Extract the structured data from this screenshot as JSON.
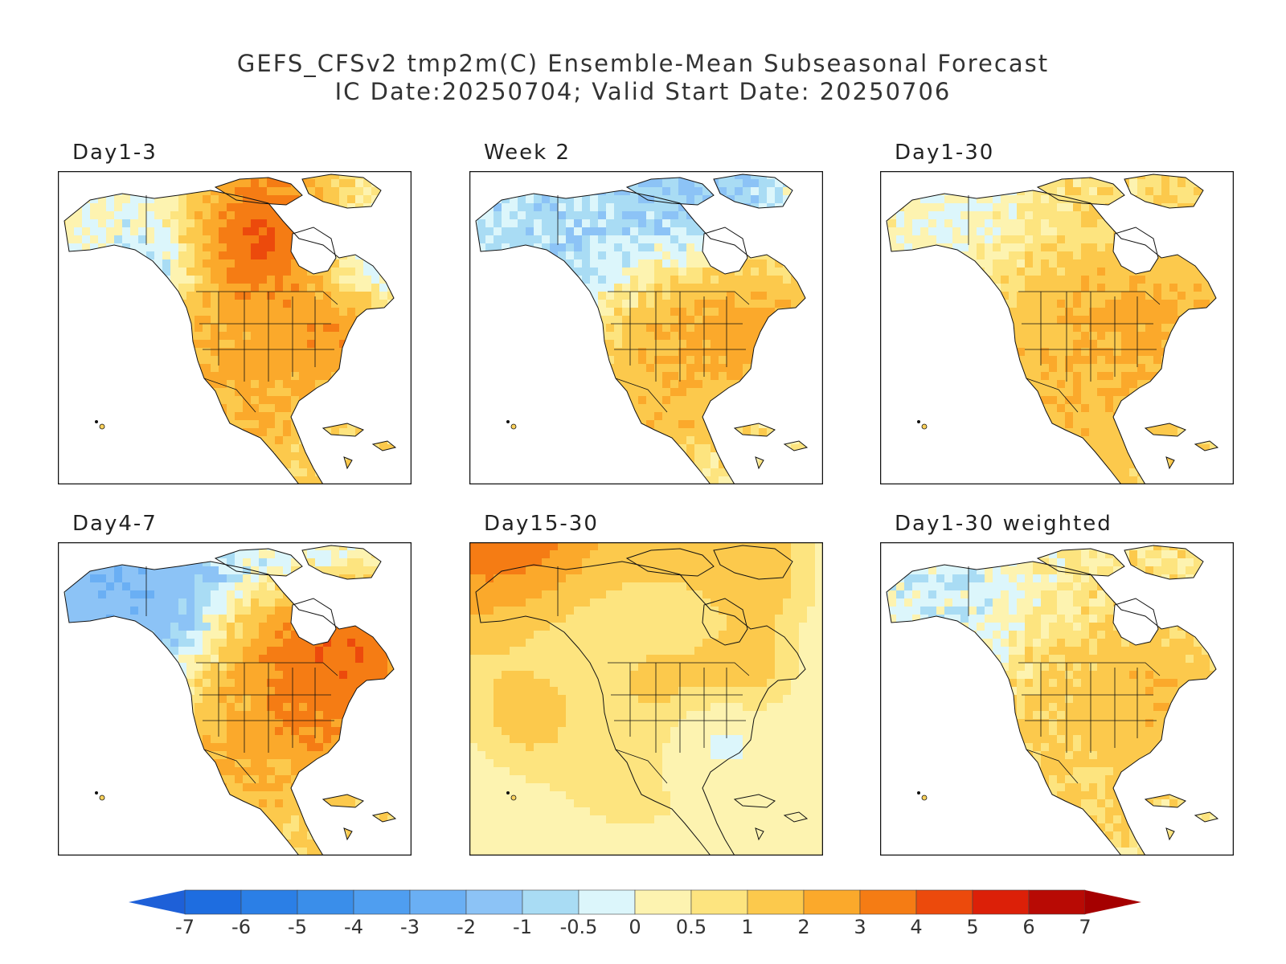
{
  "title": {
    "line1": "GEFS_CFSv2 tmp2m(C) Ensemble-Mean Subseasonal Forecast",
    "line2": "IC Date:20250704; Valid Start Date: 20250706"
  },
  "panels": [
    {
      "label": "Day1-3",
      "scheme": "d13"
    },
    {
      "label": "Week 2",
      "scheme": "w2"
    },
    {
      "label": "Day1-30",
      "scheme": "d130"
    },
    {
      "label": "Day4-7",
      "scheme": "d47"
    },
    {
      "label": "Day15-30",
      "scheme": "d1530"
    },
    {
      "label": "Day1-30 weighted",
      "scheme": "d130w"
    }
  ],
  "colorbar": {
    "labels": [
      "-7",
      "-6",
      "-5",
      "-4",
      "-3",
      "-2",
      "-1",
      "-0.5",
      "0",
      "0.5",
      "1",
      "2",
      "3",
      "4",
      "5",
      "6",
      "7"
    ],
    "colors": [
      "#1e6de0",
      "#2b7fe6",
      "#3a8eea",
      "#4f9ef0",
      "#6aaff4",
      "#8cc3f6",
      "#a9dcf4",
      "#dcf6fb",
      "#fdf3b0",
      "#fde47f",
      "#fcc94c",
      "#fba92b",
      "#f57c14",
      "#ec4a0c",
      "#dc2008",
      "#b80a04"
    ],
    "low_arrow_color": "#1e60d8",
    "high_arrow_color": "#a50000"
  }
}
